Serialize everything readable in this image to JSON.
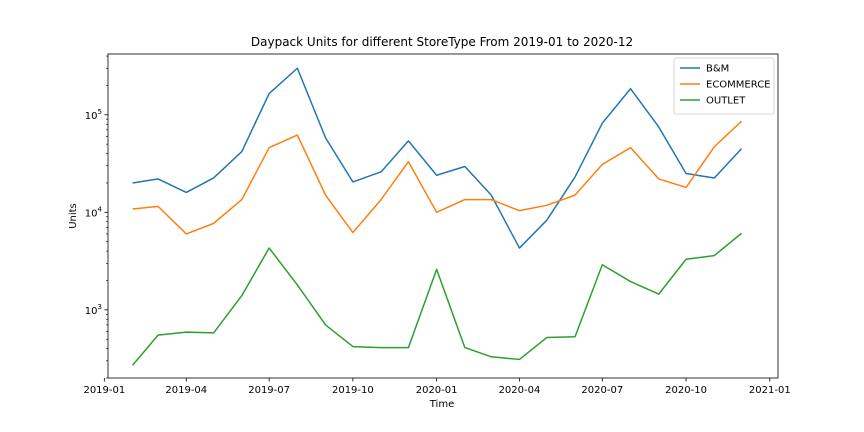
{
  "chart_data": {
    "type": "line",
    "title": "Daypack Units for different StoreType From 2019-01 to 2020-12",
    "xlabel": "Time",
    "ylabel": "Units",
    "yscale": "log",
    "ylim": [
      200,
      420000
    ],
    "xlim": [
      "2019-01-05",
      "2021-01-10"
    ],
    "grid": false,
    "legend_position": "top-right",
    "x": [
      "2019-02-01",
      "2019-03-01",
      "2019-04-01",
      "2019-05-01",
      "2019-06-01",
      "2019-07-01",
      "2019-08-01",
      "2019-09-01",
      "2019-10-01",
      "2019-11-01",
      "2019-12-01",
      "2020-01-01",
      "2020-02-01",
      "2020-03-01",
      "2020-04-01",
      "2020-05-01",
      "2020-06-01",
      "2020-07-01",
      "2020-08-01",
      "2020-09-01",
      "2020-10-01",
      "2020-11-01",
      "2020-12-01"
    ],
    "xticks": [
      "2019-01-01",
      "2019-04-01",
      "2019-07-01",
      "2019-10-01",
      "2020-01-01",
      "2020-04-01",
      "2020-07-01",
      "2020-10-01",
      "2021-01-01"
    ],
    "xtick_labels": [
      "2019-01",
      "2019-04",
      "2019-07",
      "2019-10",
      "2020-01",
      "2020-04",
      "2020-07",
      "2020-10",
      "2021-01"
    ],
    "yticks": [
      1000,
      10000,
      100000
    ],
    "ytick_bases": [
      "10",
      "10",
      "10"
    ],
    "ytick_exps": [
      "3",
      "4",
      "5"
    ],
    "series": [
      {
        "name": "B&M",
        "color": "#1f77b4",
        "values": [
          20000,
          22000,
          16000,
          22500,
          42000,
          165000,
          300000,
          58000,
          20500,
          26000,
          54000,
          24000,
          29500,
          15000,
          4300,
          8300,
          23000,
          82000,
          185000,
          75000,
          25000,
          22500,
          45000
        ]
      },
      {
        "name": "ECOMMERCE",
        "color": "#ff7f0e",
        "values": [
          10800,
          11500,
          6000,
          7700,
          13500,
          46000,
          62000,
          15000,
          6200,
          13500,
          33000,
          10000,
          13500,
          13500,
          10400,
          11800,
          15000,
          31000,
          46000,
          22000,
          18000,
          47000,
          86000
        ]
      },
      {
        "name": "OUTLET",
        "color": "#2ca02c",
        "values": [
          270,
          550,
          590,
          580,
          1400,
          4300,
          1800,
          700,
          420,
          410,
          410,
          2600,
          410,
          330,
          310,
          520,
          530,
          2900,
          1950,
          1450,
          3300,
          3600,
          6100
        ]
      }
    ]
  }
}
